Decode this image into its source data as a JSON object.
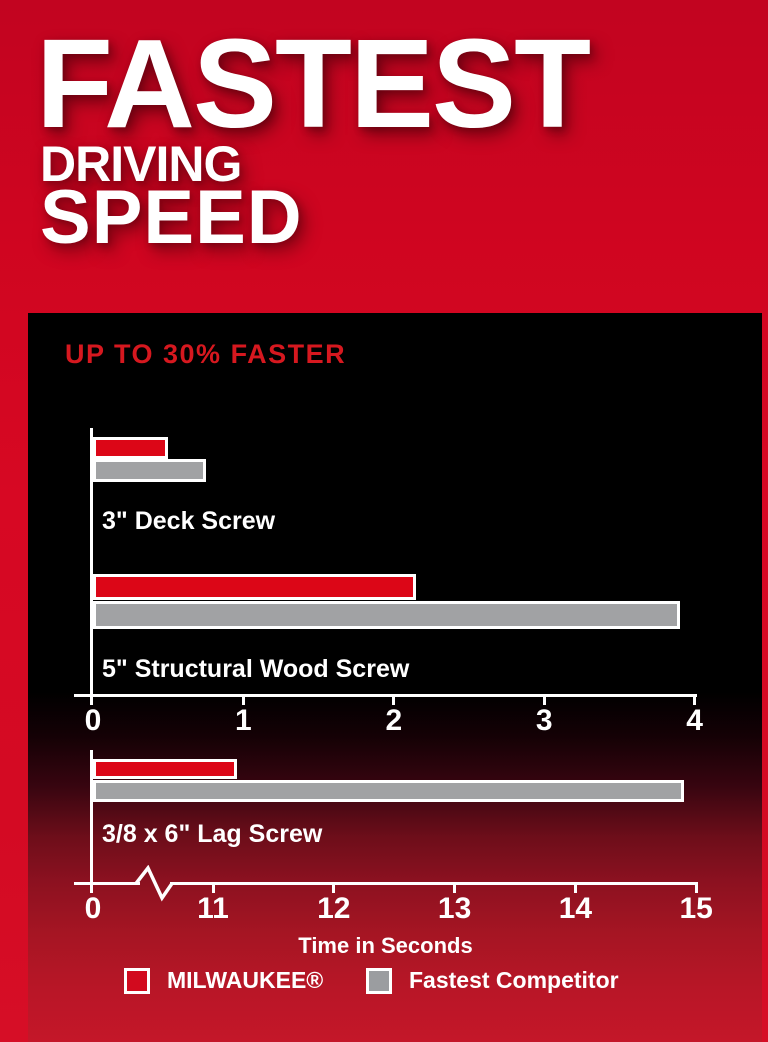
{
  "header": {
    "title": "FASTEST",
    "subtitle1": "DRIVING",
    "subtitle2": "SPEED"
  },
  "chart_data": {
    "type": "bar",
    "orientation": "horizontal",
    "title": "UP TO 30% FASTER",
    "xlabel": "Time in Seconds",
    "unit": "seconds",
    "legend": [
      {
        "label": "MILWAUKEE®",
        "color": "#dc0617"
      },
      {
        "label": "Fastest Competitor",
        "color": "#a1a2a4"
      }
    ],
    "axes": {
      "axis1": {
        "range": [
          0,
          4
        ],
        "ticks": [
          0,
          1,
          2,
          3,
          4
        ],
        "break": false
      },
      "axis2": {
        "range": [
          0,
          15
        ],
        "ticks": [
          0,
          11,
          12,
          13,
          14,
          15
        ],
        "break": "axis compressed between 0 and 11"
      }
    },
    "groups": [
      {
        "category": "3\" Deck Screw",
        "axis": "axis1",
        "milwaukee_seconds": 0.5,
        "competitor_seconds": 0.75
      },
      {
        "category": "5\" Structural Wood Screw",
        "axis": "axis1",
        "milwaukee_seconds": 2.15,
        "competitor_seconds": 3.9
      },
      {
        "category": "3/8 x 6\" Lag Screw",
        "axis": "axis2",
        "milwaukee_seconds": 11.2,
        "competitor_seconds": 14.9
      }
    ]
  },
  "colors": {
    "background_red": "#d00621",
    "panel_black": "#000000",
    "milwaukee_red": "#dc0617",
    "competitor_gray": "#a1a2a4",
    "headline_red": "#d6181f",
    "text_white": "#ffffff"
  }
}
